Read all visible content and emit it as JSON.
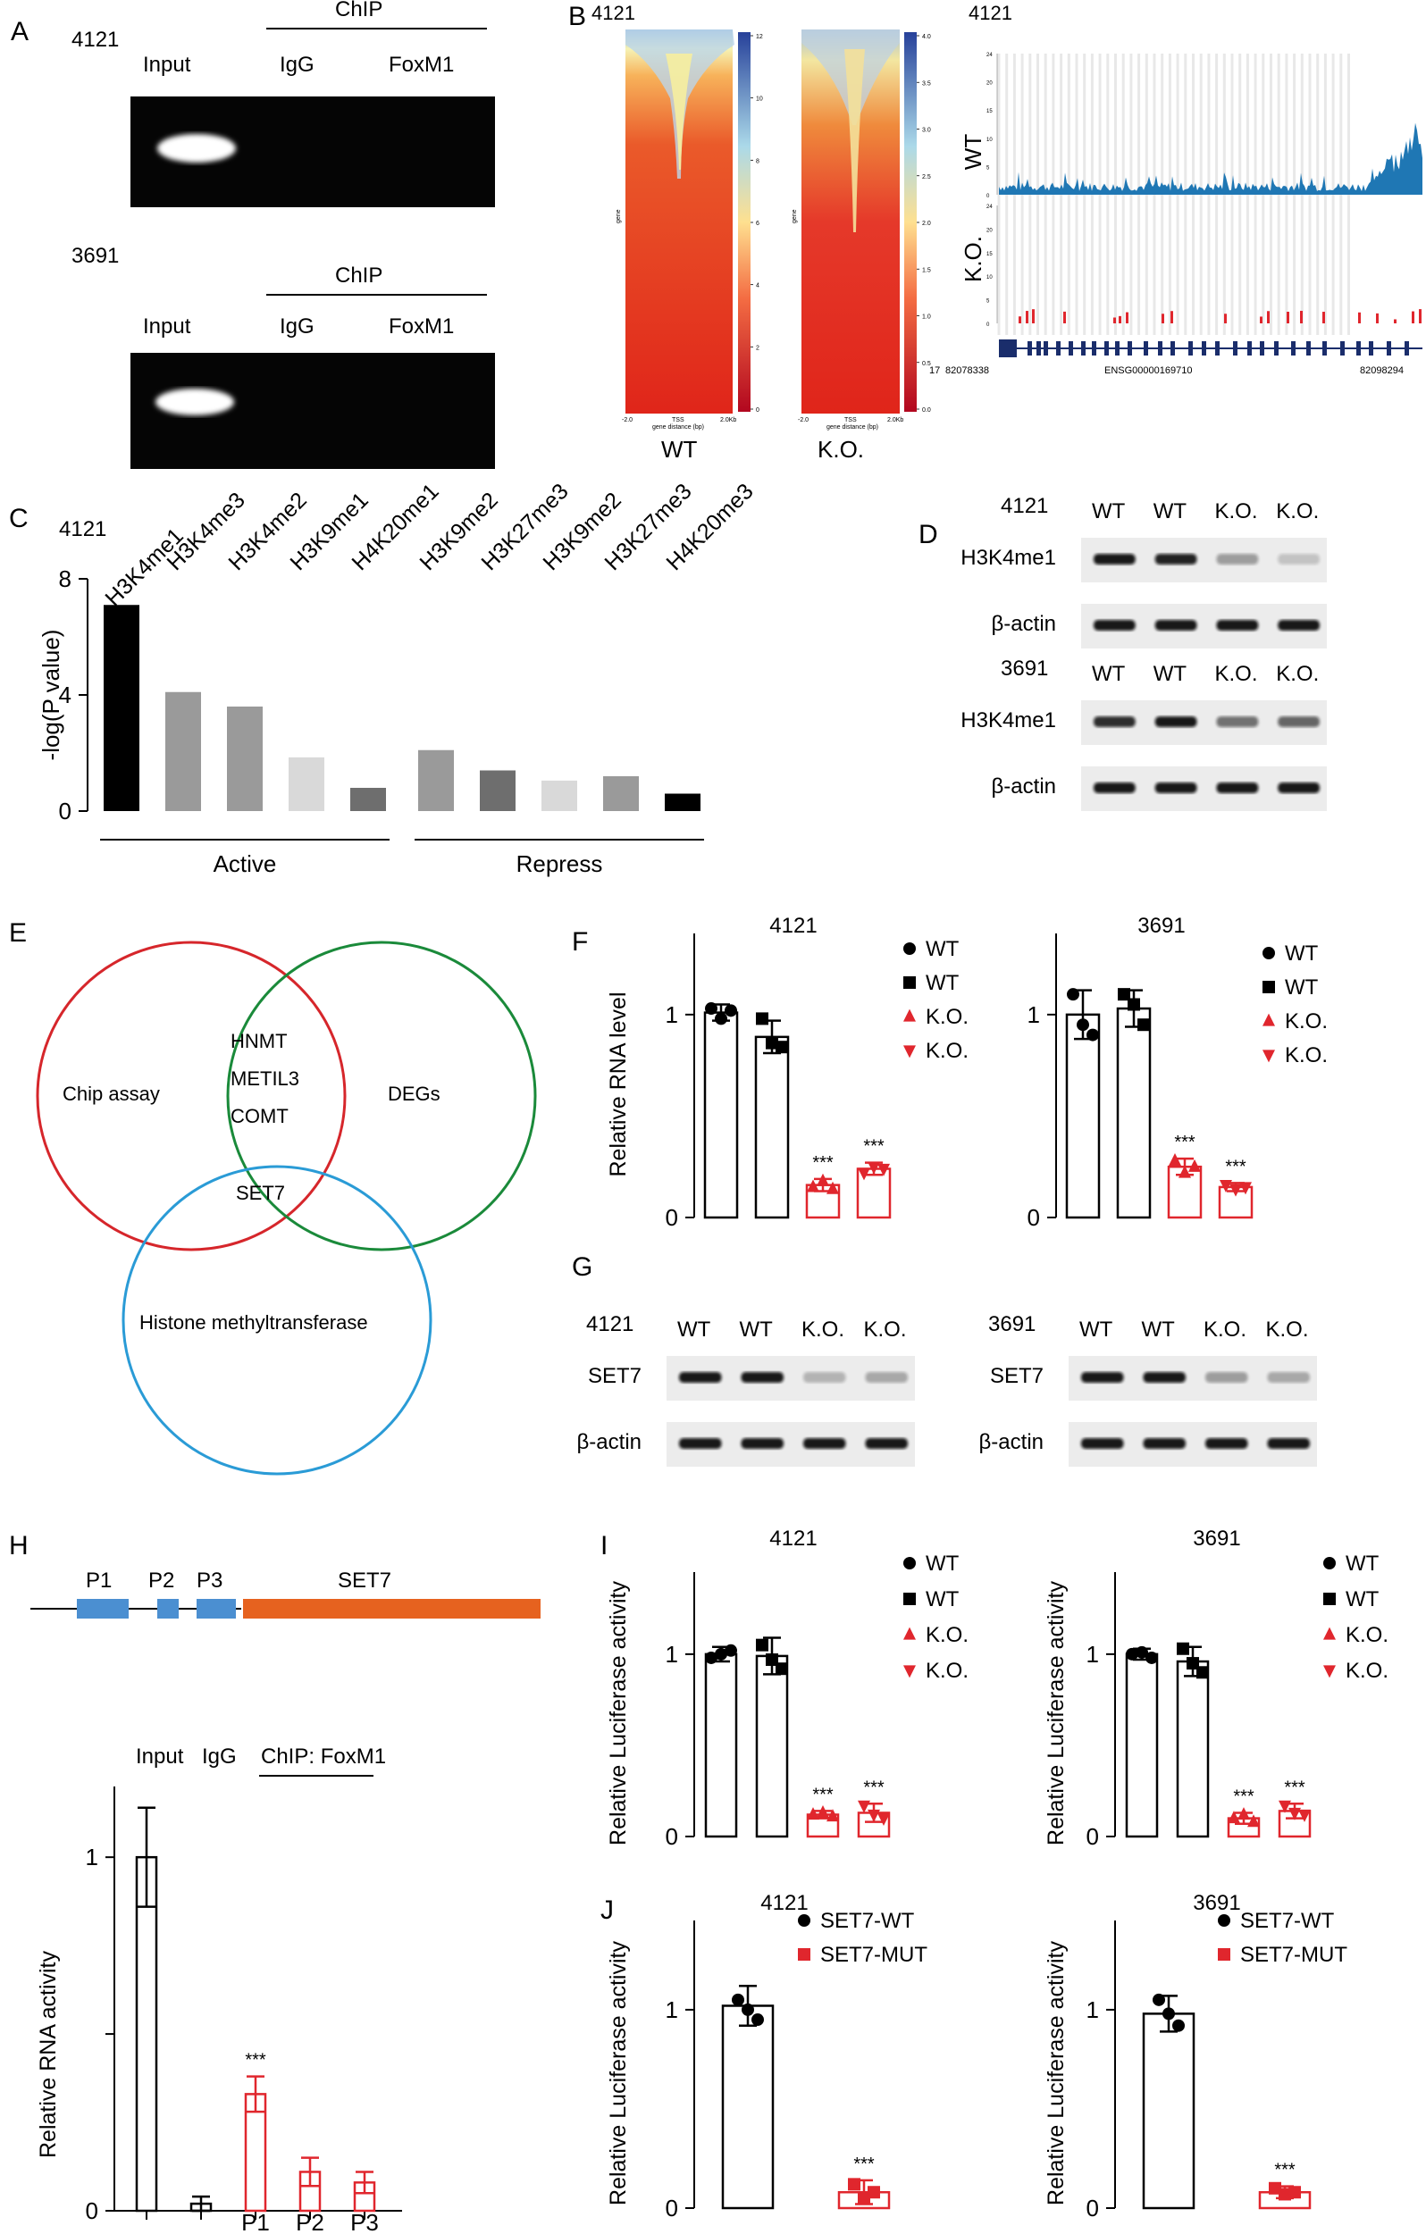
{
  "panel_letters": {
    "A": "A",
    "B": "B",
    "C": "C",
    "D": "D",
    "E": "E",
    "F": "F",
    "G": "G",
    "H": "H",
    "I": "I",
    "J": "J"
  },
  "colors": {
    "black": "#000000",
    "grey1": "#9a9a9a",
    "grey2": "#b5b5b5",
    "grey3": "#dcdcdc",
    "red": "#e0262d",
    "blue_wt": "#1f77b4",
    "heat_red": "#e0251a",
    "heat_yellow": "#f7f3a6",
    "heat_blue": "#27419a",
    "venn_red": "#d6262b",
    "venn_green": "#1a8a3a",
    "venn_blue": "#2a9bd6",
    "orange": "#e6621f",
    "promoter_blue": "#4b8fd1"
  },
  "panelA": {
    "blots": [
      {
        "cell": "4121",
        "chip": "ChIP",
        "lanes": [
          "Input",
          "IgG",
          "FoxM1"
        ]
      },
      {
        "cell": "3691",
        "chip": "ChIP",
        "lanes": [
          "Input",
          "IgG",
          "FoxM1"
        ]
      }
    ]
  },
  "panelB": {
    "cell": "4121",
    "heatmaps": [
      {
        "label": "WT",
        "scale": [
          "0",
          "2",
          "4",
          "6",
          "8",
          "10",
          "12"
        ],
        "ylabel": "gene",
        "xticks": [
          "-2.0",
          "TSS",
          "2.0Kb"
        ],
        "xlabel": "gene distance (bp)"
      },
      {
        "label": "K.O.",
        "scale": [
          "0.0",
          "0.5",
          "1.0",
          "1.5",
          "2.0",
          "2.5",
          "3.0",
          "3.5",
          "4.0"
        ],
        "ylabel": "gene",
        "xticks": [
          "-2.0",
          "TSS",
          "2.0Kb"
        ],
        "xlabel": "gene distance (bp)"
      }
    ],
    "track": {
      "cell": "4121",
      "rows": [
        {
          "label": "WT",
          "scale": [
            "0",
            "5",
            "10",
            "15",
            "20",
            "24"
          ]
        },
        {
          "label": "K.O.",
          "scale": [
            "0",
            "5",
            "10",
            "15",
            "20",
            "24"
          ]
        }
      ],
      "chrom": "17",
      "start": "82078338",
      "gene": "ENSG00000169710",
      "end": "82098294"
    }
  },
  "chart_data": [
    {
      "panel": "C",
      "type": "bar",
      "cell": "4121",
      "categories": [
        "H3K4me1",
        "H3K4me3",
        "H3K4me2",
        "H3K9me1",
        "H4K20me1",
        "H3K9me2",
        "H3K27me3",
        "H3K9me2",
        "H3K27me3",
        "H4K20me3"
      ],
      "values": [
        7.1,
        4.1,
        3.6,
        1.85,
        0.8,
        2.1,
        1.4,
        1.05,
        1.2,
        0.6
      ],
      "bar_colors": [
        "#000000",
        "#9a9a9a",
        "#9a9a9a",
        "#d9d9d9",
        "#6e6e6e",
        "#9a9a9a",
        "#6e6e6e",
        "#d9d9d9",
        "#9a9a9a",
        "#000000"
      ],
      "ylabel": "-log(P value)",
      "ylim": [
        0,
        8
      ],
      "yticks": [
        0,
        4,
        8
      ],
      "groups": [
        {
          "label": "Active",
          "from": 0,
          "to": 4
        },
        {
          "label": "Repress",
          "from": 5,
          "to": 9
        }
      ]
    },
    {
      "panel": "F",
      "type": "bar",
      "cell": "4121",
      "ylabel": "Relative RNA level",
      "ylim": [
        0,
        1.4
      ],
      "yticks": [
        0,
        1
      ],
      "categories": [
        "WT",
        "WT",
        "K.O.",
        "K.O."
      ],
      "values": [
        1.01,
        0.89,
        0.16,
        0.24
      ],
      "err": [
        0.04,
        0.08,
        0.03,
        0.03
      ],
      "points": [
        [
          1.03,
          0.98,
          1.02
        ],
        [
          0.98,
          0.86,
          0.84
        ],
        [
          0.15,
          0.18,
          0.14
        ],
        [
          0.22,
          0.25,
          0.24
        ]
      ],
      "sig": [
        "",
        "",
        "***",
        "***"
      ]
    },
    {
      "panel": "F",
      "type": "bar",
      "cell": "3691",
      "ylabel": "",
      "ylim": [
        0,
        1.4
      ],
      "yticks": [
        0,
        1
      ],
      "categories": [
        "WT",
        "WT",
        "K.O.",
        "K.O."
      ],
      "values": [
        1.0,
        1.03,
        0.25,
        0.15
      ],
      "err": [
        0.12,
        0.09,
        0.04,
        0.02
      ],
      "points": [
        [
          1.1,
          0.95,
          0.9
        ],
        [
          1.1,
          1.05,
          0.95
        ],
        [
          0.28,
          0.22,
          0.25
        ],
        [
          0.16,
          0.14,
          0.15
        ]
      ],
      "sig": [
        "",
        "",
        "***",
        "***"
      ]
    },
    {
      "panel": "H",
      "type": "bar",
      "ylabel": "Relative RNA activity",
      "ylim": [
        0,
        1.2
      ],
      "yticks": [
        0,
        0.5,
        1
      ],
      "ytick_labels": [
        "0",
        "",
        "1"
      ],
      "categories": [
        "Input",
        "IgG",
        "P1",
        "P2",
        "P3"
      ],
      "xtick_labels": [
        "",
        "",
        "P1",
        "P2",
        "P3"
      ],
      "values": [
        1.0,
        0.02,
        0.33,
        0.11,
        0.08
      ],
      "err": [
        0.14,
        0.02,
        0.05,
        0.04,
        0.03
      ],
      "sig": [
        "",
        "",
        "***",
        "",
        ""
      ]
    },
    {
      "panel": "I",
      "type": "bar",
      "cell": "4121",
      "ylabel": "Relative Luciferase activity",
      "ylim": [
        0,
        1.45
      ],
      "yticks": [
        0,
        1
      ],
      "categories": [
        "WT",
        "WT",
        "K.O.",
        "K.O."
      ],
      "values": [
        1.0,
        0.99,
        0.12,
        0.13
      ],
      "err": [
        0.04,
        0.1,
        0.02,
        0.05
      ],
      "points": [
        [
          0.98,
          1.0,
          1.02
        ],
        [
          1.05,
          0.97,
          0.92
        ],
        [
          0.12,
          0.13,
          0.11
        ],
        [
          0.17,
          0.12,
          0.1
        ]
      ],
      "sig": [
        "",
        "",
        "***",
        "***"
      ]
    },
    {
      "panel": "I",
      "type": "bar",
      "cell": "3691",
      "ylabel": "Relative Luciferase activity",
      "ylim": [
        0,
        1.45
      ],
      "yticks": [
        0,
        1
      ],
      "categories": [
        "WT",
        "WT",
        "K.O.",
        "K.O."
      ],
      "values": [
        1.0,
        0.96,
        0.1,
        0.14
      ],
      "err": [
        0.03,
        0.08,
        0.03,
        0.04
      ],
      "points": [
        [
          1.0,
          1.01,
          0.98
        ],
        [
          1.03,
          0.95,
          0.9
        ],
        [
          0.1,
          0.12,
          0.08
        ],
        [
          0.17,
          0.13,
          0.12
        ]
      ],
      "sig": [
        "",
        "",
        "***",
        "***"
      ]
    },
    {
      "panel": "J",
      "type": "bar",
      "cell": "4121",
      "ylabel": "Relative Luciferase activity",
      "ylim": [
        0,
        1.45
      ],
      "yticks": [
        0,
        1
      ],
      "categories": [
        "SET7-WT",
        "SET7-MUT"
      ],
      "values": [
        1.02,
        0.08
      ],
      "err": [
        0.1,
        0.06
      ],
      "points": [
        [
          1.05,
          1.0,
          0.95
        ],
        [
          0.12,
          0.05,
          0.08
        ]
      ],
      "sig": [
        "",
        "***"
      ]
    },
    {
      "panel": "J",
      "type": "bar",
      "cell": "3691",
      "ylabel": "Relative Luciferase activity",
      "ylim": [
        0,
        1.45
      ],
      "yticks": [
        0,
        1
      ],
      "categories": [
        "SET7-WT",
        "SET7-MUT"
      ],
      "values": [
        0.98,
        0.08
      ],
      "err": [
        0.09,
        0.03
      ],
      "points": [
        [
          1.05,
          0.98,
          0.92
        ],
        [
          0.1,
          0.07,
          0.08
        ]
      ],
      "sig": [
        "",
        "***"
      ]
    }
  ],
  "legendF": [
    "WT",
    "WT",
    "K.O.",
    "K.O."
  ],
  "legendJ": [
    "SET7-WT",
    "SET7-MUT"
  ],
  "panelD": {
    "blots": [
      {
        "cell": "4121",
        "lanes": [
          "WT",
          "WT",
          "K.O.",
          "K.O."
        ],
        "rows": [
          "H3K4me1",
          "β-actin"
        ]
      },
      {
        "cell": "3691",
        "lanes": [
          "WT",
          "WT",
          "K.O.",
          "K.O."
        ],
        "rows": [
          "H3K4me1",
          "β-actin"
        ]
      }
    ]
  },
  "panelE": {
    "sets": [
      "Chip assay",
      "DEGs",
      "Histone methyltransferase"
    ],
    "overlap_ab": [
      "HNMT",
      "METIL3",
      "COMT"
    ],
    "overlap_abc": "SET7"
  },
  "panelG": {
    "blots": [
      {
        "cell": "4121",
        "lanes": [
          "WT",
          "WT",
          "K.O.",
          "K.O."
        ],
        "rows": [
          "SET7",
          "β-actin"
        ]
      },
      {
        "cell": "3691",
        "lanes": [
          "WT",
          "WT",
          "K.O.",
          "K.O."
        ],
        "rows": [
          "SET7",
          "β-actin"
        ]
      }
    ]
  },
  "panelH": {
    "promoters": [
      "P1",
      "P2",
      "P3"
    ],
    "gene": "SET7",
    "header": {
      "input": "Input",
      "igg": "IgG",
      "chip": "ChIP: FoxM1"
    }
  },
  "significance": "***"
}
